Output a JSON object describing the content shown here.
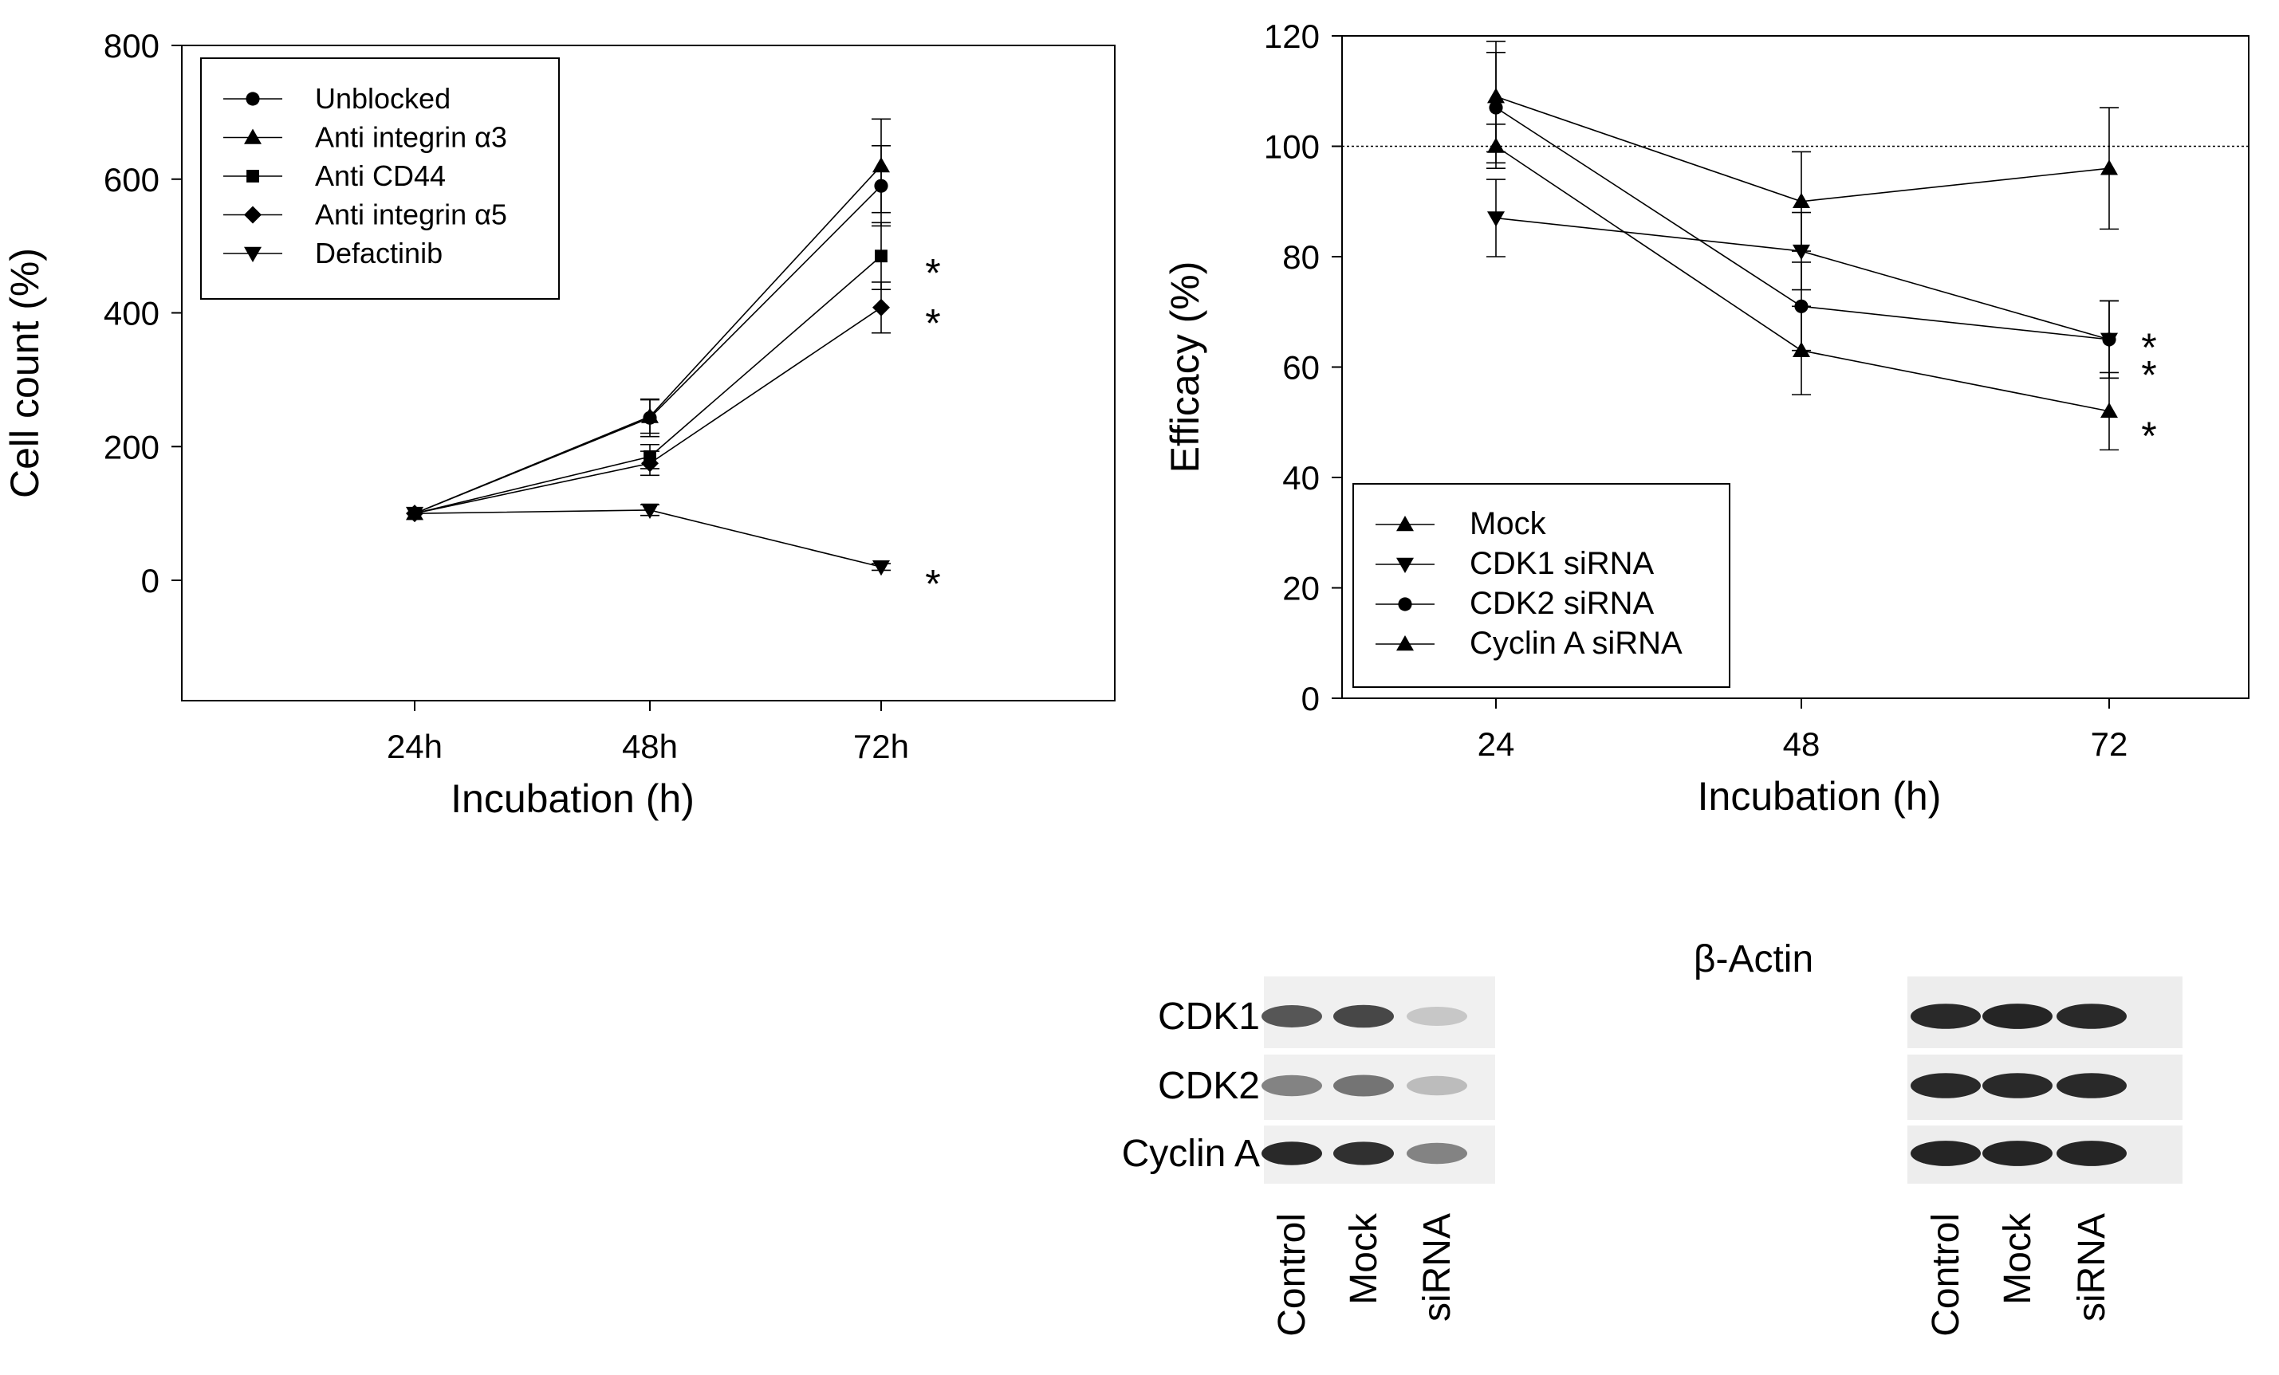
{
  "chart_data": [
    {
      "type": "line",
      "title": "",
      "xlabel": "Incubation (h)",
      "ylabel": "Cell count (%)",
      "categories": [
        "24h",
        "48h",
        "72h"
      ],
      "ylim": [
        -180,
        800
      ],
      "yticks": [
        0,
        200,
        400,
        600,
        800
      ],
      "legend_position": "top-left",
      "series": [
        {
          "name": "Unblocked",
          "marker": "circle",
          "values": [
            100,
            243,
            590
          ],
          "errors": [
            0,
            28,
            60
          ]
        },
        {
          "name": "Anti integrin α3",
          "marker": "triangle-up",
          "values": [
            100,
            245,
            620
          ],
          "errors": [
            0,
            25,
            70
          ]
        },
        {
          "name": "Anti CD44",
          "marker": "square",
          "values": [
            100,
            185,
            485
          ],
          "errors": [
            0,
            18,
            50
          ]
        },
        {
          "name": "Anti integrin α5",
          "marker": "diamond",
          "values": [
            100,
            175,
            408
          ],
          "errors": [
            0,
            18,
            38
          ]
        },
        {
          "name": "Defactinib",
          "marker": "triangle-down",
          "values": [
            100,
            105,
            20
          ],
          "errors": [
            0,
            8,
            5
          ]
        }
      ],
      "annotations": [
        {
          "text": "*",
          "x": "72h",
          "y": 480
        },
        {
          "text": "*",
          "x": "72h",
          "y": 405
        },
        {
          "text": "*",
          "x": "72h",
          "y": 15
        }
      ]
    },
    {
      "type": "line",
      "title": "",
      "xlabel": "Incubation (h)",
      "ylabel": "Efficacy (%)",
      "categories": [
        "24",
        "48",
        "72"
      ],
      "ylim": [
        0,
        120
      ],
      "yticks": [
        0,
        20,
        40,
        60,
        80,
        100,
        120
      ],
      "reference_line": 100,
      "legend_position": "bottom-left",
      "series": [
        {
          "name": "Mock",
          "marker": "triangle-up",
          "values": [
            109,
            90,
            96
          ],
          "errors": [
            10,
            9,
            11
          ]
        },
        {
          "name": "CDK1 siRNA",
          "marker": "triangle-down",
          "values": [
            87,
            81,
            65
          ],
          "errors": [
            7,
            7,
            7
          ]
        },
        {
          "name": "CDK2 siRNA",
          "marker": "circle",
          "values": [
            107,
            71,
            65
          ],
          "errors": [
            10,
            8,
            7
          ]
        },
        {
          "name": "Cyclin A siRNA",
          "marker": "triangle-up",
          "values": [
            100,
            63,
            52
          ],
          "errors": [
            4,
            8,
            7
          ]
        }
      ],
      "annotations": [
        {
          "text": "*",
          "x": "72",
          "y": 66
        },
        {
          "text": "*",
          "x": "72",
          "y": 61
        },
        {
          "text": "*",
          "x": "72",
          "y": 50
        }
      ]
    }
  ],
  "blot": {
    "header": "β-Actin",
    "rows": [
      "CDK1",
      "CDK2",
      "Cyclin A"
    ],
    "lanes": [
      "Control",
      "Mock",
      "siRNA",
      "Control",
      "Mock",
      "siRNA"
    ],
    "target_intensity": [
      [
        0.75,
        0.82,
        0.25
      ],
      [
        0.55,
        0.62,
        0.3
      ],
      [
        0.95,
        0.92,
        0.55
      ]
    ],
    "actin_intensity": [
      [
        0.95,
        0.97,
        0.95
      ],
      [
        0.95,
        0.95,
        0.95
      ],
      [
        0.97,
        0.97,
        0.97
      ]
    ]
  }
}
